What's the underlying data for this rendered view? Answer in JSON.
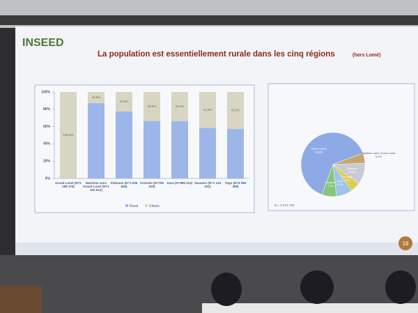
{
  "slide": {
    "logo": "INSEED",
    "title": "La population est essentiellement rurale dans les cinq régions",
    "title_note": "(hors Lomé)",
    "page_number": "16"
  },
  "chart_data": [
    {
      "type": "stacked-bar",
      "categories": [
        "Grand Lomé (N=2 188 376)",
        "Maritime sans Grand Lomé (N=1 340 813)",
        "Plateaux (N=1 635 946)",
        "Centrale (N=795 529)",
        "Kara (N=985 512)",
        "Savanes (N=1 143 520)",
        "Togo (N=8 095 498)"
      ],
      "series": [
        {
          "name": "Rural",
          "color": "#9db6ea",
          "values": [
            0,
            87.2,
            77.4,
            66.5,
            66.4,
            58.4,
            57.4
          ]
        },
        {
          "name": "Urbain",
          "color": "#d8d5c2",
          "values": [
            100,
            12.8,
            22.6,
            33.5,
            33.6,
            41.6,
            42.6
          ],
          "value_labels": [
            "100.0%",
            "12.8%",
            "22.6%",
            "33.5%",
            "33.6%",
            "41.6%",
            "42.6%"
          ]
        }
      ],
      "ylim": [
        0,
        100
      ],
      "yticks": [
        {
          "value": 0,
          "label": "0%"
        },
        {
          "value": 20,
          "label": "20%"
        },
        {
          "value": 40,
          "label": "40%"
        },
        {
          "value": 60,
          "label": "60%"
        },
        {
          "value": 80,
          "label": "80%"
        },
        {
          "value": 100,
          "label": "100%"
        }
      ]
    },
    {
      "type": "pie",
      "note": "N = 2 473 702",
      "categories": [
        "Grand Lomé",
        "Maritime sans Grand Lomé",
        "Plateaux",
        "Centrale",
        "Kara",
        "Savanes"
      ],
      "values": [
        63.6,
        5.2,
        10.9,
        5.0,
        8.0,
        7.3
      ],
      "value_labels": [
        "63.6%",
        "5.2%",
        "10.9%",
        "5.0%",
        "8.0%",
        "7.3%"
      ],
      "colors": [
        "#8eaae6",
        "#c8a46e",
        "#c9cbd2",
        "#d9cf52",
        "#9fc3ea",
        "#86c67a"
      ]
    }
  ]
}
